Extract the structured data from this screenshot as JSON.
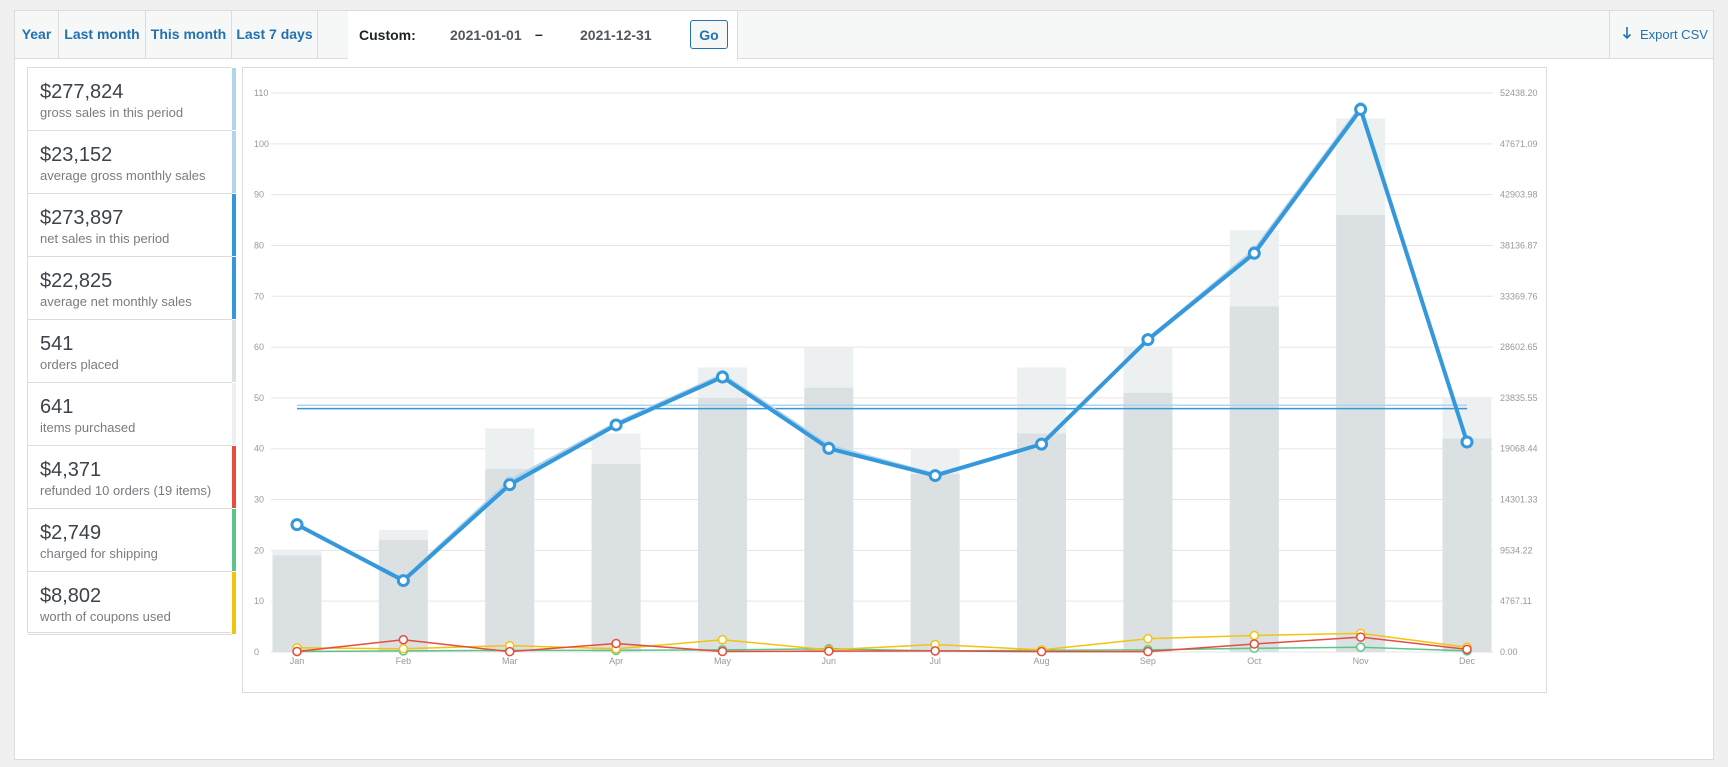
{
  "range_tabs": [
    "Year",
    "Last month",
    "This month",
    "Last 7 days"
  ],
  "custom": {
    "label": "Custom:",
    "start": "2021-01-01",
    "separator": "–",
    "end": "2021-12-31",
    "go": "Go"
  },
  "export": {
    "label": "Export CSV",
    "icon": "download-arrow-icon"
  },
  "legend": [
    {
      "value": "$277,824",
      "desc": "gross sales in this period",
      "color": "#b1d4ea"
    },
    {
      "value": "$23,152",
      "desc": "average gross monthly sales",
      "color": "#b1d4ea"
    },
    {
      "value": "$273,897",
      "desc": "net sales in this period",
      "color": "#3498db"
    },
    {
      "value": "$22,825",
      "desc": "average net monthly sales",
      "color": "#3498db"
    },
    {
      "value": "541",
      "desc": "orders placed",
      "color": "#dbe1e3"
    },
    {
      "value": "641",
      "desc": "items purchased",
      "color": "#ecf0f1"
    },
    {
      "value": "$4,371",
      "desc": "refunded 10 orders (19 items)",
      "color": "#e74c3c"
    },
    {
      "value": "$2,749",
      "desc": "charged for shipping",
      "color": "#5cc488"
    },
    {
      "value": "$8,802",
      "desc": "worth of coupons used",
      "color": "#f1c40f"
    }
  ],
  "chart_data": {
    "type": "bar",
    "categories": [
      "Jan",
      "Feb",
      "Mar",
      "Apr",
      "May",
      "Jun",
      "Jul",
      "Aug",
      "Sep",
      "Oct",
      "Nov",
      "Dec"
    ],
    "y_left": {
      "ticks": [
        "0",
        "10",
        "20",
        "30",
        "40",
        "50",
        "60",
        "70",
        "80",
        "90",
        "100",
        "110"
      ],
      "lim": [
        0,
        110
      ]
    },
    "y_right": {
      "ticks": [
        "0.00",
        "4767.11",
        "9534.22",
        "14301.33",
        "19068.44",
        "23835.55",
        "28602.65",
        "33369.76",
        "38136.87",
        "42903.98",
        "47671.09",
        "52438.20"
      ],
      "lim": [
        0,
        52438.2
      ]
    },
    "series": [
      {
        "key": "items",
        "axis": "left",
        "kind": "bar",
        "color": "#ecf0f1",
        "values": [
          20,
          24,
          44,
          43,
          56,
          60,
          40,
          56,
          60,
          83,
          105,
          50
        ]
      },
      {
        "key": "orders",
        "axis": "left",
        "kind": "bar",
        "color": "#dbe1e3",
        "values": [
          19,
          22,
          36,
          37,
          50,
          52,
          35,
          43,
          51,
          68,
          86,
          42
        ]
      },
      {
        "key": "gross",
        "axis": "right",
        "kind": "line",
        "color": "#b1d4ea",
        "values": [
          11950,
          6800,
          16050,
          21450,
          26000,
          19350,
          16650,
          19450,
          29350,
          37700,
          51150,
          19650
        ]
      },
      {
        "key": "net",
        "axis": "right",
        "kind": "line",
        "color": "#3498db",
        "values": [
          11950,
          6700,
          15700,
          21300,
          25800,
          19100,
          16550,
          19500,
          29300,
          37400,
          50900,
          19700
        ]
      },
      {
        "key": "coupons",
        "axis": "right",
        "kind": "line",
        "color": "#f1c40f",
        "values": [
          400,
          300,
          600,
          300,
          1150,
          200,
          700,
          200,
          1250,
          1550,
          1750,
          450
        ]
      },
      {
        "key": "shipping",
        "axis": "right",
        "kind": "line",
        "color": "#5cc488",
        "values": [
          50,
          100,
          150,
          150,
          200,
          300,
          100,
          150,
          200,
          350,
          450,
          100
        ]
      },
      {
        "key": "refunds",
        "axis": "right",
        "kind": "line",
        "color": "#e74c3c",
        "values": [
          50,
          1150,
          30,
          800,
          50,
          80,
          100,
          30,
          30,
          750,
          1400,
          250
        ]
      }
    ],
    "averages": [
      {
        "key": "average-gross",
        "color": "#b1d4ea",
        "value": 23152
      },
      {
        "key": "average-net",
        "color": "#3498db",
        "value": 22825
      }
    ],
    "grid": true
  }
}
